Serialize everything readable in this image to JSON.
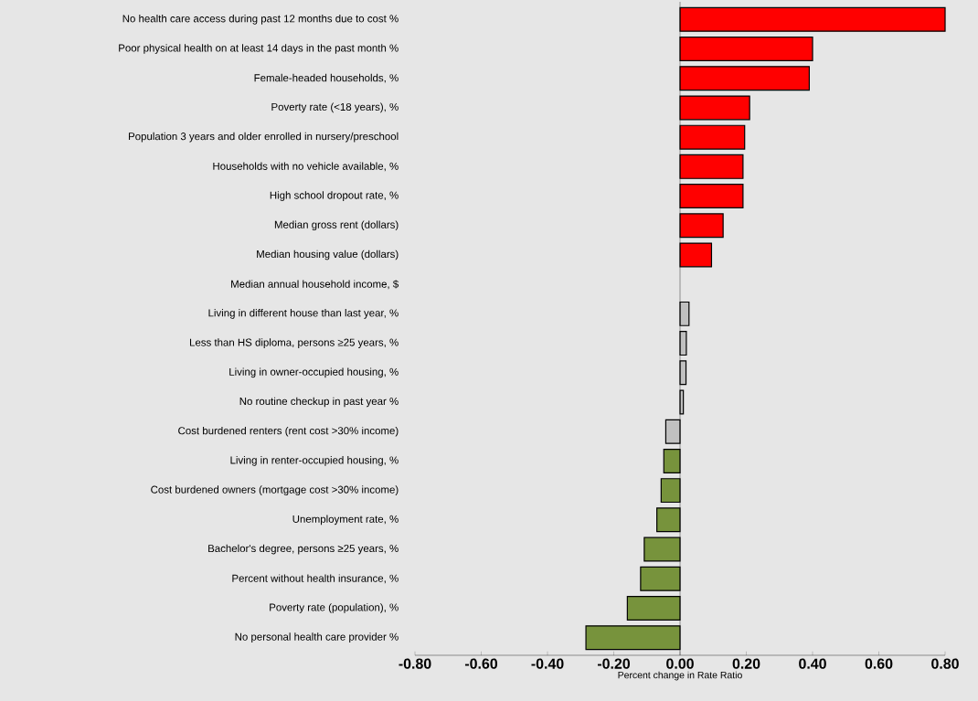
{
  "chart_data": {
    "type": "bar",
    "orientation": "horizontal",
    "xlabel": "Percent change in Rate Ratio",
    "categories": [
      "No health care access during past 12 months due to cost %",
      "Poor physical health on at least 14 days in the past month %",
      "Female-headed households, %",
      "Poverty rate (<18 years), %",
      "Population 3 years and older enrolled in nursery/preschool",
      "Households with no vehicle available, %",
      "High school dropout rate, %",
      "Median gross rent (dollars)",
      "Median housing value (dollars)",
      "Median annual household income, $",
      "Living in different house than last year, %",
      "Less than HS diploma, persons ≥25 years, %",
      "Living in owner-occupied housing, %",
      "No routine checkup in past year %",
      "Cost burdened renters (rent cost >30% income)",
      "Living in renter-occupied housing, %",
      "Cost burdened owners (mortgage cost >30% income)",
      "Unemployment rate, %",
      "Bachelor's degree, persons ≥25 years, %",
      "Percent without health insurance, %",
      "Poverty rate (population), %",
      "No personal health care provider %"
    ],
    "values": [
      0.8,
      0.4,
      0.39,
      0.21,
      0.195,
      0.19,
      0.19,
      0.13,
      0.095,
      null,
      0.027,
      0.019,
      0.018,
      0.01,
      -0.043,
      -0.049,
      -0.057,
      -0.07,
      -0.108,
      -0.119,
      -0.159,
      -0.284
    ],
    "colors": [
      "#ff0000",
      "#ff0000",
      "#ff0000",
      "#ff0000",
      "#ff0000",
      "#ff0000",
      "#ff0000",
      "#ff0000",
      "#ff0000",
      "#ff0000",
      "#c0c0c0",
      "#c0c0c0",
      "#c0c0c0",
      "#c0c0c0",
      "#c0c0c0",
      "#77933c",
      "#77933c",
      "#77933c",
      "#77933c",
      "#77933c",
      "#77933c",
      "#77933c"
    ],
    "xlim": [
      -0.8,
      0.8
    ],
    "xticks": [
      {
        "value": -0.8,
        "label": "-0.80"
      },
      {
        "value": -0.6,
        "label": "-0.60"
      },
      {
        "value": -0.4,
        "label": "-0.40"
      },
      {
        "value": -0.2,
        "label": "-0.20"
      },
      {
        "value": 0,
        "label": "0.00"
      },
      {
        "value": 0.2,
        "label": "0.20"
      },
      {
        "value": 0.4,
        "label": "0.40"
      },
      {
        "value": 0.6,
        "label": "0.60"
      },
      {
        "value": 0.8,
        "label": "0.80"
      }
    ],
    "ref_lines": [
      {
        "axis": "x",
        "value": 0,
        "color": "#000000"
      }
    ],
    "grid": false
  }
}
